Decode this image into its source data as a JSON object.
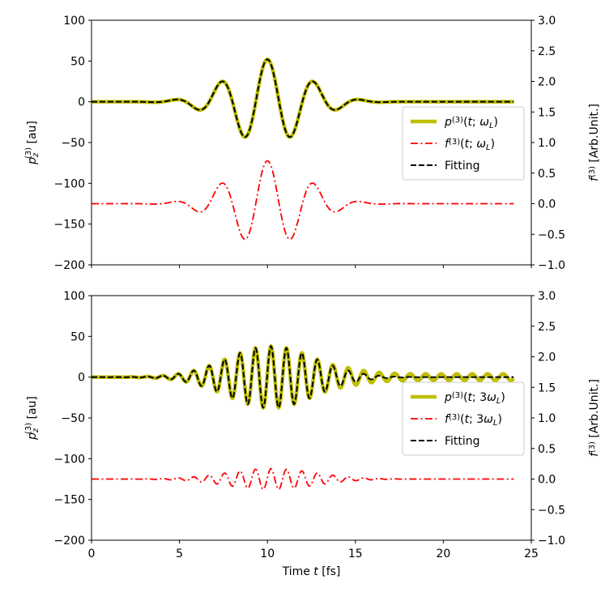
{
  "chart_data": [
    {
      "type": "line",
      "xlim": [
        0,
        25
      ],
      "ylim": [
        -200,
        100
      ],
      "ylim_right": [
        -1.0,
        3.0
      ],
      "xticks": [
        0,
        5,
        10,
        15,
        20,
        25
      ],
      "yticks": [
        "100",
        "50",
        "0",
        "−50",
        "−100",
        "−150",
        "−200"
      ],
      "yticks_right": [
        "3.0",
        "2.5",
        "2.0",
        "1.5",
        "1.0",
        "0.5",
        "0.0",
        "−0.5",
        "−1.0"
      ],
      "ylabel": {
        "base": "p",
        "sub": "z",
        "sup": "(3)",
        "rest": " [au]"
      },
      "ylabel_right": {
        "base": "f",
        "sup": "(3)",
        "rest": " [Arb.Unit.]"
      },
      "legend_position": "center-right",
      "legend": [
        {
          "base": "p",
          "sup": "(3)",
          "arg_pre": "(t; ",
          "omega": "ω",
          "omega_sub": "L",
          "arg_post": ")"
        },
        {
          "base": "f",
          "sup": "(3)",
          "arg_pre": "(t; ",
          "omega": "ω",
          "omega_sub": "L",
          "arg_post": ")"
        },
        {
          "label": "Fitting"
        }
      ],
      "series": [
        {
          "key": "p",
          "color": "#bfbf00",
          "axis": "left",
          "style": "solid",
          "model": {
            "amplitude": 52,
            "center": 10.0,
            "width": 2.15,
            "period": 2.65,
            "phase": 0.0,
            "offset": 0,
            "t_start": 0,
            "t_end": 24,
            "tail_amplitude": 0,
            "tail_period": 0.9,
            "tail_start": 14.5
          }
        },
        {
          "key": "f",
          "color": "#ff0000",
          "axis": "right",
          "style": "dashdot",
          "model": {
            "amplitude": 0.7,
            "center": 10.0,
            "width": 2.15,
            "period": 2.65,
            "phase": 0.0,
            "offset": 0.0,
            "t_start": 0,
            "t_end": 24
          }
        },
        {
          "key": "fit",
          "color": "#000000",
          "axis": "left",
          "style": "dashed",
          "model": {
            "amplitude": 52,
            "center": 10.0,
            "width": 2.15,
            "period": 2.65,
            "phase": 0.0,
            "offset": 0,
            "t_start": 0,
            "t_end": 24
          }
        }
      ]
    },
    {
      "type": "line",
      "xlim": [
        0,
        25
      ],
      "ylim": [
        -200,
        100
      ],
      "ylim_right": [
        -1.0,
        3.0
      ],
      "xticks": [
        0,
        5,
        10,
        15,
        20,
        25
      ],
      "yticks": [
        "100",
        "50",
        "0",
        "−50",
        "−100",
        "−150",
        "−200"
      ],
      "yticks_right": [
        "3.0",
        "2.5",
        "2.0",
        "1.5",
        "1.0",
        "0.5",
        "0.0",
        "−0.5",
        "−1.0"
      ],
      "xlabel": {
        "pre": "Time ",
        "var": "t",
        "post": " [fs]"
      },
      "ylabel": {
        "base": "p",
        "sub": "z",
        "sup": "(3)",
        "rest": " [au]"
      },
      "ylabel_right": {
        "base": "f",
        "sup": "(3)",
        "rest": " [Arb.Unit.]"
      },
      "legend_position": "center-right",
      "legend": [
        {
          "base": "p",
          "sup": "(3)",
          "arg_pre": "(t; 3",
          "omega": "ω",
          "omega_sub": "L",
          "arg_post": ")"
        },
        {
          "base": "f",
          "sup": "(3)",
          "arg_pre": "(t; 3",
          "omega": "ω",
          "omega_sub": "L",
          "arg_post": ")"
        },
        {
          "label": "Fitting"
        }
      ],
      "series": [
        {
          "key": "p",
          "color": "#bfbf00",
          "axis": "left",
          "style": "solid",
          "model": {
            "amplitude": 38,
            "center": 10.2,
            "width": 2.5,
            "period": 0.88,
            "phase": 0.0,
            "offset": 0,
            "t_start": 0,
            "t_end": 24,
            "tail_amplitude": 4,
            "tail_period": 0.88,
            "tail_start": 14.0
          }
        },
        {
          "key": "f",
          "color": "#ff0000",
          "axis": "right",
          "style": "dashdot",
          "model": {
            "amplitude": 0.17,
            "center": 10.2,
            "width": 2.5,
            "period": 0.88,
            "phase": 0.0,
            "offset": 0.0,
            "t_start": 0,
            "t_end": 24
          }
        },
        {
          "key": "fit",
          "color": "#000000",
          "axis": "left",
          "style": "dashed",
          "model": {
            "amplitude": 38,
            "center": 10.2,
            "width": 2.5,
            "period": 0.88,
            "phase": 0.0,
            "offset": 0,
            "t_start": 0,
            "t_end": 24
          }
        }
      ]
    }
  ]
}
